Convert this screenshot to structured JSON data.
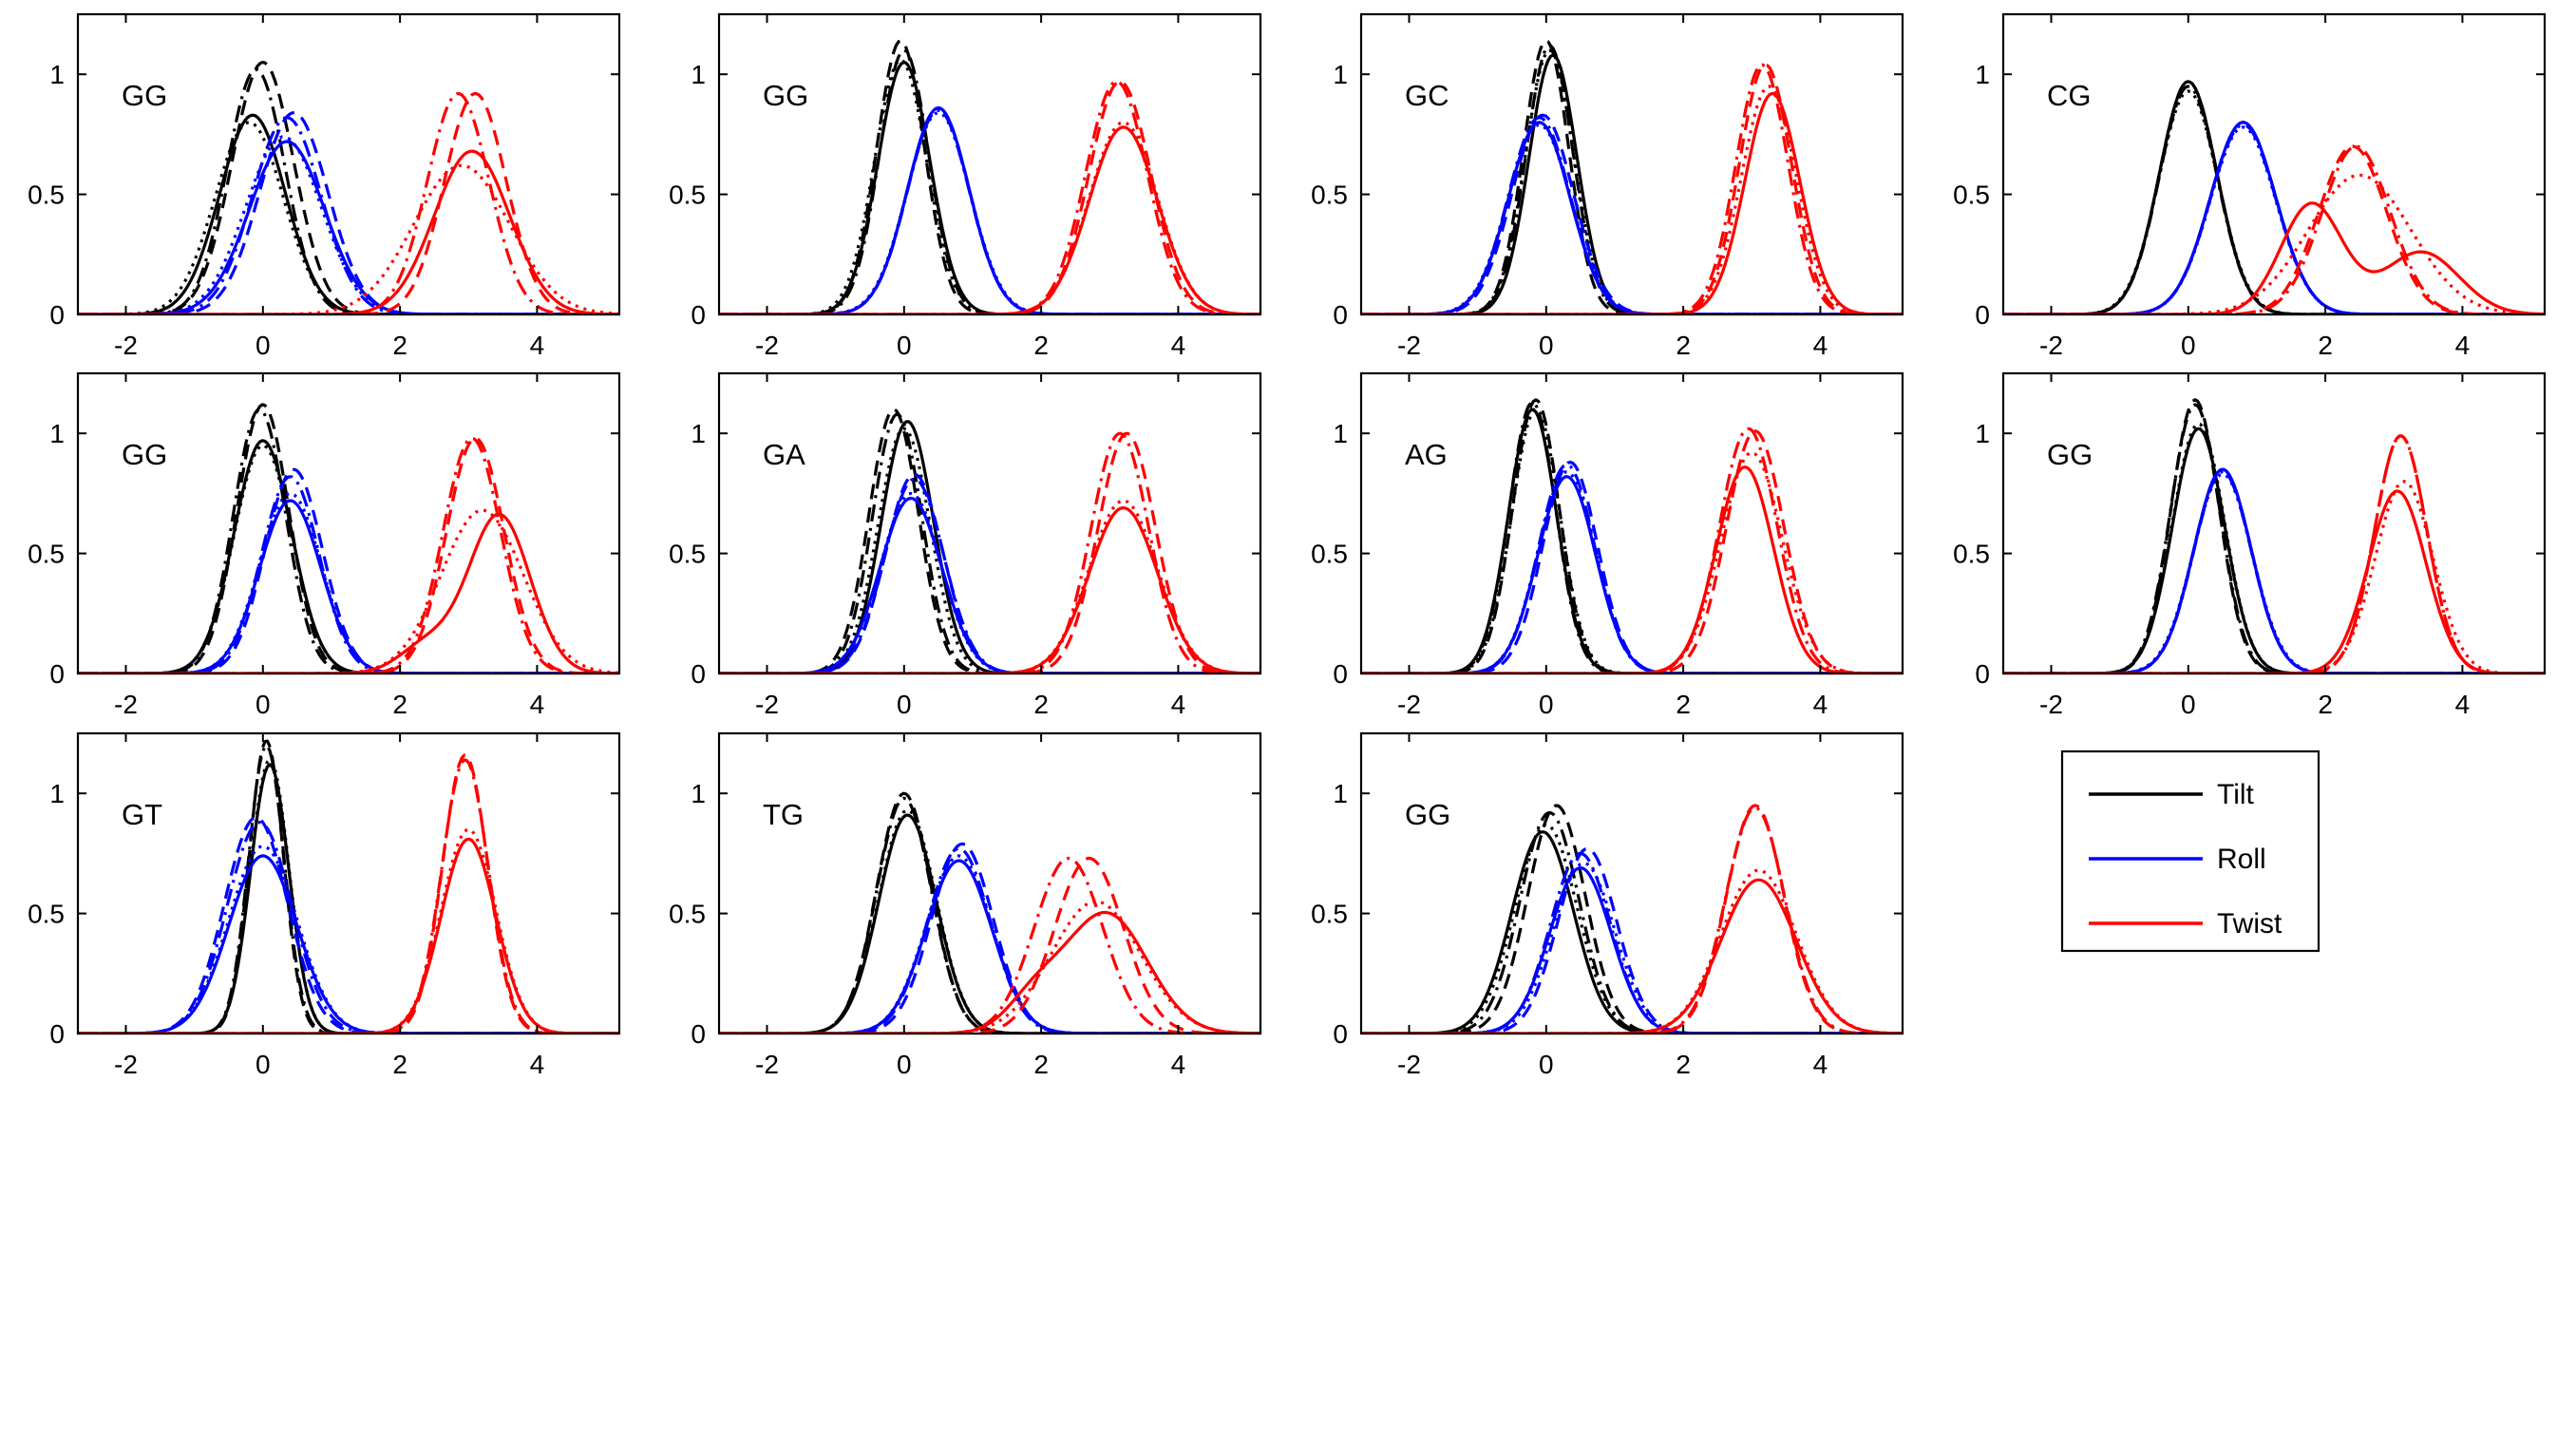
{
  "chart_data": {
    "type": "line",
    "layout": "3x4 grid of density plots",
    "shared": {
      "xlim": [
        -2.7,
        5.2
      ],
      "ylim": [
        0,
        1.25
      ],
      "xticks": [
        -2,
        0,
        2,
        4
      ],
      "xtick_labels": [
        "-2",
        "0",
        "2",
        "4"
      ],
      "yticks": [
        0,
        0.5,
        1
      ],
      "ytick_labels": [
        "0",
        "0.5",
        "1"
      ],
      "line_styles": [
        "solid",
        "dashed",
        "dashdot",
        "dotted"
      ],
      "series_names": [
        "Tilt",
        "Roll",
        "Twist"
      ],
      "colors": {
        "Tilt": "#000000",
        "Roll": "#0000ff",
        "Twist": "#ff0000"
      },
      "grid": false
    },
    "legend": {
      "placement": "row 3, column 4",
      "entries": [
        {
          "label": "Tilt",
          "color": "#000000"
        },
        {
          "label": "Roll",
          "color": "#0000ff"
        },
        {
          "label": "Twist",
          "color": "#ff0000"
        }
      ]
    },
    "panels": [
      {
        "label": "GG",
        "tilt": [
          [
            -0.15,
            0.48,
            0.83
          ],
          [
            0.0,
            0.45,
            1.05
          ],
          [
            -0.1,
            0.42,
            1.02
          ],
          [
            -0.2,
            0.5,
            0.8
          ]
        ],
        "roll": [
          [
            0.35,
            0.55,
            0.72
          ],
          [
            0.45,
            0.5,
            0.84
          ],
          [
            0.35,
            0.5,
            0.82
          ],
          [
            0.3,
            0.55,
            0.74
          ]
        ],
        "twist": [
          [
            3.05,
            0.55,
            0.68
          ],
          [
            3.1,
            0.45,
            0.92
          ],
          [
            2.85,
            0.45,
            0.92
          ],
          [
            2.9,
            0.7,
            0.62
          ]
        ]
      },
      {
        "label": "GG",
        "tilt": [
          [
            0.0,
            0.38,
            1.05
          ],
          [
            -0.05,
            0.35,
            1.14
          ],
          [
            0.0,
            0.36,
            1.1
          ],
          [
            -0.05,
            0.38,
            1.06
          ]
        ],
        "roll": [
          [
            0.5,
            0.45,
            0.86
          ],
          [
            0.5,
            0.45,
            0.86
          ],
          [
            0.5,
            0.45,
            0.85
          ],
          [
            0.5,
            0.46,
            0.84
          ]
        ],
        "twist": [
          [
            3.2,
            0.5,
            0.78
          ],
          [
            3.15,
            0.45,
            0.97
          ],
          [
            3.1,
            0.45,
            0.97
          ],
          [
            3.2,
            0.5,
            0.8
          ]
        ]
      },
      {
        "label": "GC",
        "tilt": [
          [
            0.1,
            0.35,
            1.08
          ],
          [
            0.0,
            0.33,
            1.14
          ],
          [
            0.05,
            0.34,
            1.12
          ],
          [
            0.05,
            0.35,
            1.1
          ]
        ],
        "roll": [
          [
            -0.1,
            0.45,
            0.8
          ],
          [
            -0.05,
            0.45,
            0.83
          ],
          [
            -0.1,
            0.45,
            0.82
          ],
          [
            -0.1,
            0.46,
            0.79
          ]
        ],
        "twist": [
          [
            3.3,
            0.4,
            0.92
          ],
          [
            3.2,
            0.38,
            1.04
          ],
          [
            3.15,
            0.38,
            1.04
          ],
          [
            3.25,
            0.4,
            0.95
          ]
        ]
      },
      {
        "label": "CG",
        "tilt": [
          [
            0.0,
            0.42,
            0.97
          ],
          [
            0.0,
            0.42,
            0.97
          ],
          [
            0.0,
            0.42,
            0.95
          ],
          [
            0.0,
            0.43,
            0.93
          ]
        ],
        "roll": [
          [
            0.8,
            0.48,
            0.8
          ],
          [
            0.8,
            0.48,
            0.8
          ],
          [
            0.8,
            0.48,
            0.79
          ],
          [
            0.8,
            0.48,
            0.78
          ]
        ],
        "twist": [
          [
            1.8,
            0.45,
            0.46
          ],
          [
            2.4,
            0.5,
            0.7
          ],
          [
            2.45,
            0.5,
            0.7
          ],
          [
            2.5,
            0.75,
            0.58
          ],
          [
            3.4,
            0.55,
            0.26
          ]
        ]
      },
      {
        "label": "GG",
        "tilt": [
          [
            0.0,
            0.42,
            0.97
          ],
          [
            0.0,
            0.38,
            1.12
          ],
          [
            -0.05,
            0.38,
            1.1
          ],
          [
            0.0,
            0.42,
            0.95
          ]
        ],
        "roll": [
          [
            0.4,
            0.45,
            0.72
          ],
          [
            0.45,
            0.42,
            0.85
          ],
          [
            0.4,
            0.42,
            0.82
          ],
          [
            0.4,
            0.45,
            0.75
          ]
        ],
        "twist": [
          [
            3.45,
            0.45,
            0.66
          ],
          [
            3.1,
            0.42,
            0.98
          ],
          [
            3.05,
            0.42,
            0.98
          ],
          [
            3.2,
            0.6,
            0.68
          ],
          [
            2.4,
            0.4,
            0.12
          ]
        ]
      },
      {
        "label": "GA",
        "tilt": [
          [
            0.05,
            0.38,
            1.05
          ],
          [
            -0.15,
            0.36,
            1.1
          ],
          [
            -0.1,
            0.36,
            1.08
          ],
          [
            0.0,
            0.38,
            1.02
          ]
        ],
        "roll": [
          [
            0.1,
            0.45,
            0.73
          ],
          [
            0.15,
            0.42,
            0.83
          ],
          [
            0.15,
            0.43,
            0.81
          ],
          [
            0.1,
            0.44,
            0.75
          ]
        ],
        "twist": [
          [
            3.2,
            0.5,
            0.69
          ],
          [
            3.25,
            0.42,
            1.0
          ],
          [
            3.15,
            0.42,
            1.0
          ],
          [
            3.2,
            0.5,
            0.72
          ]
        ]
      },
      {
        "label": "AG",
        "tilt": [
          [
            -0.2,
            0.35,
            1.1
          ],
          [
            -0.15,
            0.34,
            1.14
          ],
          [
            -0.2,
            0.34,
            1.13
          ],
          [
            -0.15,
            0.35,
            1.1
          ]
        ],
        "roll": [
          [
            0.3,
            0.42,
            0.82
          ],
          [
            0.35,
            0.4,
            0.88
          ],
          [
            0.3,
            0.41,
            0.87
          ],
          [
            0.3,
            0.42,
            0.84
          ]
        ],
        "twist": [
          [
            2.9,
            0.42,
            0.86
          ],
          [
            3.05,
            0.42,
            1.01
          ],
          [
            2.95,
            0.42,
            1.02
          ],
          [
            3.0,
            0.45,
            0.92
          ]
        ]
      },
      {
        "label": "GG",
        "tilt": [
          [
            0.15,
            0.38,
            1.02
          ],
          [
            0.1,
            0.35,
            1.14
          ],
          [
            0.1,
            0.36,
            1.12
          ],
          [
            0.15,
            0.38,
            1.04
          ]
        ],
        "roll": [
          [
            0.5,
            0.42,
            0.85
          ],
          [
            0.5,
            0.42,
            0.85
          ],
          [
            0.5,
            0.42,
            0.84
          ],
          [
            0.5,
            0.43,
            0.83
          ]
        ],
        "twist": [
          [
            3.05,
            0.42,
            0.76
          ],
          [
            3.1,
            0.38,
            0.99
          ],
          [
            3.1,
            0.38,
            0.99
          ],
          [
            3.15,
            0.42,
            0.8
          ]
        ]
      },
      {
        "label": "GT",
        "tilt": [
          [
            0.1,
            0.28,
            1.12
          ],
          [
            0.05,
            0.25,
            1.22
          ],
          [
            0.05,
            0.26,
            1.2
          ],
          [
            0.1,
            0.28,
            1.14
          ]
        ],
        "roll": [
          [
            0.0,
            0.5,
            0.74
          ],
          [
            -0.1,
            0.46,
            0.9
          ],
          [
            -0.05,
            0.47,
            0.88
          ],
          [
            0.0,
            0.5,
            0.78
          ]
        ],
        "twist": [
          [
            3.0,
            0.4,
            0.81
          ],
          [
            2.95,
            0.33,
            1.16
          ],
          [
            2.95,
            0.34,
            1.14
          ],
          [
            3.0,
            0.4,
            0.85
          ]
        ]
      },
      {
        "label": "TG",
        "tilt": [
          [
            0.05,
            0.42,
            0.91
          ],
          [
            0.0,
            0.4,
            1.0
          ],
          [
            0.0,
            0.4,
            0.98
          ],
          [
            0.05,
            0.42,
            0.93
          ]
        ],
        "roll": [
          [
            0.8,
            0.48,
            0.72
          ],
          [
            0.85,
            0.45,
            0.79
          ],
          [
            0.8,
            0.46,
            0.77
          ],
          [
            0.8,
            0.48,
            0.74
          ]
        ],
        "twist": [
          [
            2.95,
            0.6,
            0.5
          ],
          [
            2.7,
            0.5,
            0.73
          ],
          [
            2.4,
            0.5,
            0.73
          ],
          [
            2.8,
            0.65,
            0.55
          ],
          [
            1.9,
            0.4,
            0.13
          ]
        ]
      },
      {
        "label": "GG",
        "tilt": [
          [
            -0.05,
            0.45,
            0.84
          ],
          [
            0.15,
            0.42,
            0.95
          ],
          [
            0.05,
            0.43,
            0.92
          ],
          [
            0.0,
            0.45,
            0.87
          ]
        ],
        "roll": [
          [
            0.5,
            0.45,
            0.69
          ],
          [
            0.6,
            0.43,
            0.77
          ],
          [
            0.5,
            0.44,
            0.75
          ],
          [
            0.55,
            0.45,
            0.71
          ]
        ],
        "twist": [
          [
            3.1,
            0.55,
            0.64
          ],
          [
            3.05,
            0.42,
            0.95
          ],
          [
            3.05,
            0.43,
            0.94
          ],
          [
            3.1,
            0.55,
            0.68
          ]
        ]
      }
    ]
  }
}
